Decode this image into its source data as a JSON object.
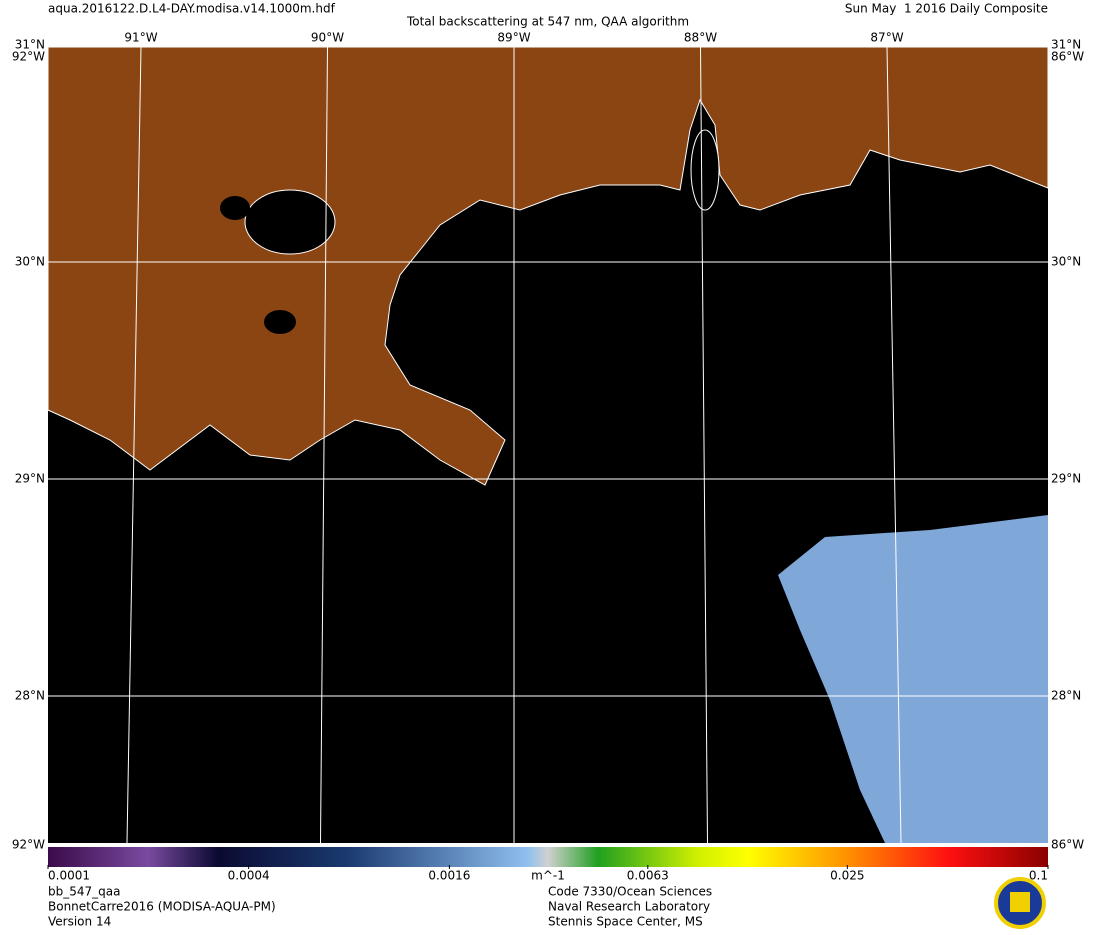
{
  "header": {
    "file": "aqua.2016122.D.L4-DAY.modisa.v14.1000m.hdf",
    "title": "Total backscattering at 547 nm, QAA algorithm",
    "date": "Sun May  1 2016 Daily Composite"
  },
  "map": {
    "type": "map",
    "lon_ticks": [
      {
        "value": -91,
        "label": "91°W"
      },
      {
        "value": -90,
        "label": "90°W"
      },
      {
        "value": -89,
        "label": "89°W"
      },
      {
        "value": -88,
        "label": "88°W"
      },
      {
        "value": -87,
        "label": "87°W"
      }
    ],
    "lat_ticks": [
      {
        "value": 30,
        "label": "30°N"
      },
      {
        "value": 29,
        "label": "29°N"
      },
      {
        "value": 28,
        "label": "28°N"
      }
    ],
    "corner_labels": {
      "top_lat": "31°N",
      "west_lon": "92°W",
      "east_lon": "86°W"
    }
  },
  "colorbar": {
    "scale": "log",
    "lim": [
      0.0001,
      0.1
    ],
    "ticks": [
      0.0001,
      0.0004,
      0.0016,
      0.0063,
      0.025,
      0.1
    ],
    "unit": "m^-1"
  },
  "footer": {
    "left": [
      "bb_547_qaa",
      "BonnetCarre2016 (MODISA-AQUA-PM)",
      "Version 14"
    ],
    "center": [
      "Code 7330/Ocean Sciences",
      "Naval Research Laboratory",
      "Stennis Space Center, MS"
    ]
  }
}
